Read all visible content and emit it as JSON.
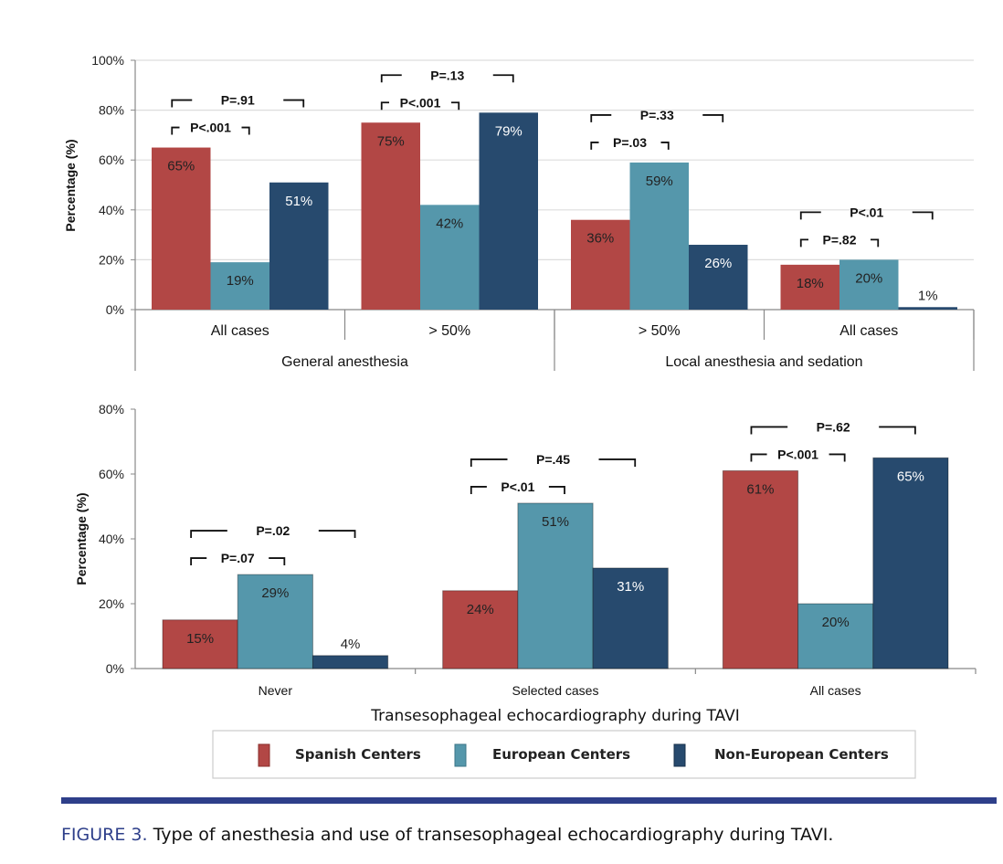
{
  "chart_data": [
    {
      "type": "bar",
      "ylabel": "Percentage (%)",
      "ylim": [
        0,
        100
      ],
      "yticks": [
        "0%",
        "20%",
        "40%",
        "60%",
        "80%",
        "100%"
      ],
      "grid": true,
      "categories": [
        "All cases",
        "> 50%",
        "> 50%",
        "All cases"
      ],
      "supergroups": [
        {
          "label": "General anesthesia",
          "span": [
            0,
            1
          ]
        },
        {
          "label": "Local anesthesia and sedation",
          "span": [
            2,
            3
          ]
        }
      ],
      "series": [
        {
          "name": "Spanish Centers",
          "values": [
            65,
            75,
            36,
            18
          ],
          "labels": [
            "65%",
            "75%",
            "36%",
            "18%"
          ]
        },
        {
          "name": "European Centers",
          "values": [
            19,
            42,
            59,
            20
          ],
          "labels": [
            "19%",
            "42%",
            "59%",
            "20%"
          ]
        },
        {
          "name": "Non-European Centers",
          "values": [
            51,
            79,
            26,
            1
          ],
          "labels": [
            "51%",
            "79%",
            "26%",
            "1%"
          ]
        }
      ],
      "annotations": [
        {
          "inner": "P<.001",
          "outer": "P=.91"
        },
        {
          "inner": "P<.001",
          "outer": "P=.13"
        },
        {
          "inner": "P=.03",
          "outer": "P=.33"
        },
        {
          "inner": "P=.82",
          "outer": "P<.01"
        }
      ]
    },
    {
      "type": "bar",
      "ylabel": "Percentage (%)",
      "xlabel": "Transesophageal echocardiography during TAVI",
      "ylim": [
        0,
        80
      ],
      "yticks": [
        "0%",
        "20%",
        "40%",
        "60%",
        "80%"
      ],
      "grid": false,
      "categories": [
        "Never",
        "Selected cases",
        "All cases"
      ],
      "series": [
        {
          "name": "Spanish Centers",
          "values": [
            15,
            24,
            61
          ],
          "labels": [
            "15%",
            "24%",
            "61%"
          ]
        },
        {
          "name": "European Centers",
          "values": [
            29,
            51,
            20
          ],
          "labels": [
            "29%",
            "51%",
            "20%"
          ]
        },
        {
          "name": "Non-European Centers",
          "values": [
            4,
            31,
            65
          ],
          "labels": [
            "4%",
            "31%",
            "65%"
          ]
        }
      ],
      "annotations": [
        {
          "inner": "P=.07",
          "outer": "P=.02"
        },
        {
          "inner": "P<.01",
          "outer": "P=.45"
        },
        {
          "inner": "P<.001",
          "outer": "P=.62"
        }
      ]
    }
  ],
  "legend": {
    "position": "bottom",
    "items": [
      "Spanish Centers",
      "European Centers",
      "Non-European Centers"
    ]
  },
  "colors": {
    "spanish": "#b24745",
    "european": "#5597ab",
    "non_european": "#274a6e",
    "accent": "#2e3f8a"
  },
  "caption": {
    "label": "FIGURE 3.",
    "text": " Type of anesthesia and use of transesophageal echocardiography during TAVI."
  }
}
